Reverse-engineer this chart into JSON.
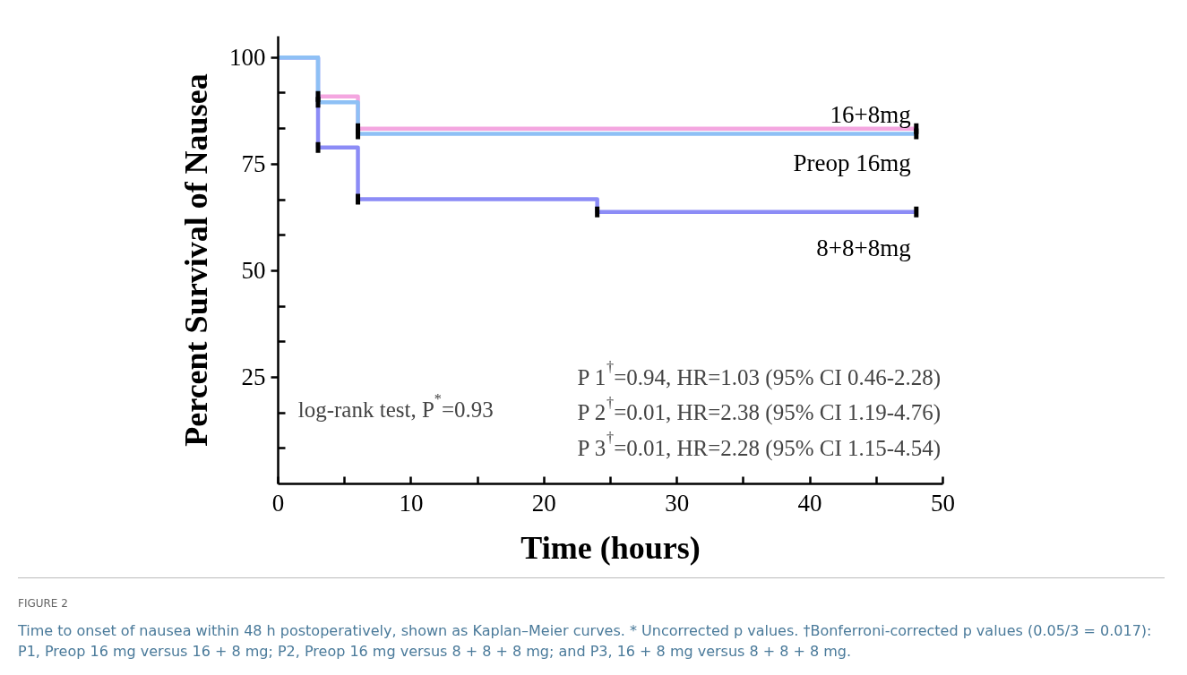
{
  "chart_data": {
    "type": "step",
    "title": "FIGURE 2",
    "xlabel": "Time (hours)",
    "ylabel": "Percent Survival of Nausea",
    "xlim": [
      0,
      50
    ],
    "ylim": [
      0,
      105
    ],
    "xticks": [
      0,
      {
        "value": 5,
        "label": null
      },
      10,
      {
        "value": 15,
        "label": null
      },
      20,
      {
        "value": 25,
        "label": null
      },
      30,
      {
        "value": 35,
        "label": null
      },
      40,
      {
        "value": 45,
        "label": null
      },
      50
    ],
    "yticks": [
      {
        "value": 8.33,
        "label": null
      },
      {
        "value": 16.67,
        "label": null
      },
      25,
      {
        "value": 33.33,
        "label": null
      },
      {
        "value": 41.67,
        "label": null
      },
      50,
      {
        "value": 58.33,
        "label": null
      },
      {
        "value": 66.67,
        "label": null
      },
      75,
      {
        "value": 83.33,
        "label": null
      },
      {
        "value": 91.67,
        "label": null
      },
      100
    ],
    "grid": false,
    "marker": "square",
    "line_style": "solid",
    "series": [
      {
        "name": "16+8mg",
        "color": "#f4a6e0",
        "x": [
          3,
          6,
          48
        ],
        "values": [
          90.9,
          83.3,
          83.3
        ]
      },
      {
        "name": "8+8+8mg",
        "color": "#8c8cf6",
        "x": [
          0,
          3,
          6,
          24,
          48
        ],
        "values": [
          100,
          78.9,
          66.8,
          63.8,
          63.8
        ]
      },
      {
        "name": "Preop 16mg",
        "color": "#8ec0f5",
        "x": [
          0,
          3,
          6,
          48
        ],
        "values": [
          100,
          89.5,
          82.1,
          82.1
        ]
      }
    ],
    "annotations": [
      "log-rank test, P$^{*}$=0.93",
      "P 1$^{†}$=0.94, HR=1.03 (95% CI 0.46-2.28)",
      "P 2$^{†}$=0.01, HR=2.38 (95% CI 1.19-4.76)",
      "P 3$^{†}$=0.01, HR=2.28 (95% CI 1.15-4.54)",
      "Time to onset of nausea within 48 h postoperatively, shown as Kaplan–Meier curves. * Uncorrected p values. †Bonferroni-corrected p values (0.05/3 = 0.017): P1, Preop 16 mg versus 16 + 8 mg; P2, Preop 16 mg versus 8 + 8 + 8 mg; and P3, 16 + 8 mg versus 8 + 8 + 8 mg."
    ]
  }
}
